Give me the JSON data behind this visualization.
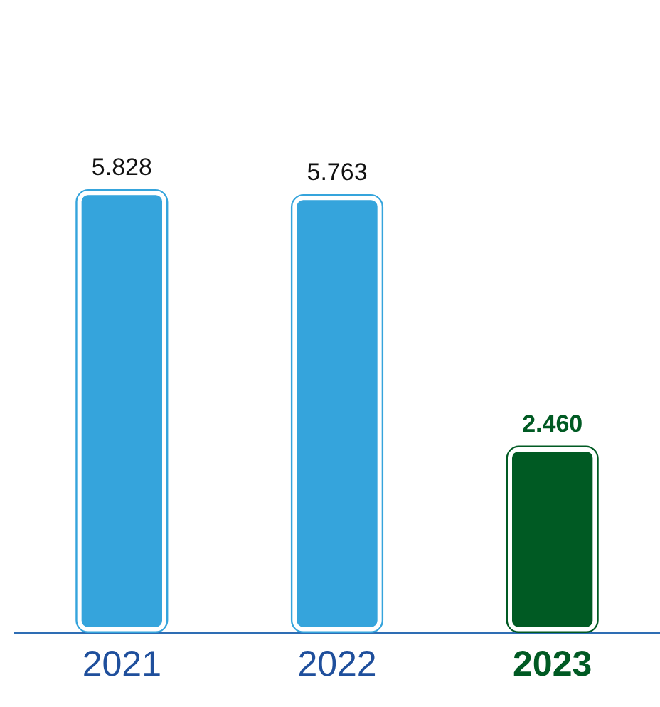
{
  "chart_data": {
    "type": "bar",
    "categories": [
      "2021",
      "2022",
      "2023"
    ],
    "values": [
      5.828,
      5.763,
      2.46
    ],
    "value_labels": [
      "5.828",
      "5.763",
      "2.460"
    ],
    "colors": [
      "#35a4dc",
      "#35a4dc",
      "#005a23"
    ],
    "legend": false,
    "grid": false
  }
}
